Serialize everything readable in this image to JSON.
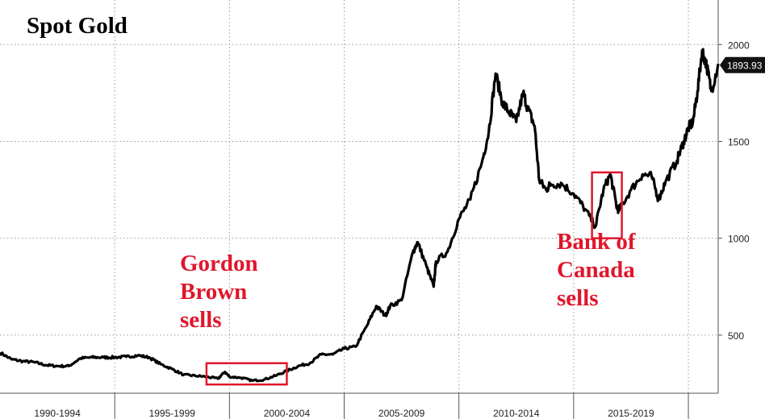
{
  "chart_data": {
    "type": "line",
    "title": "Spot Gold",
    "xlabel": "",
    "ylabel": "",
    "x_tick_labels": [
      "1990-1994",
      "1995-1999",
      "2000-2004",
      "2005-2009",
      "2010-2014",
      "2015-2019"
    ],
    "y_ticks": [
      500,
      1000,
      1500,
      2000
    ],
    "xlim": [
      1990,
      2021.3
    ],
    "ylim": [
      200,
      2230
    ],
    "grid": true,
    "last_value_label": "1893.93",
    "series": [
      {
        "x": [
          1990.0,
          1990.5,
          1991.0,
          1991.5,
          1992.0,
          1992.5,
          1993.0,
          1993.5,
          1994.0,
          1994.5,
          1995.0,
          1995.5,
          1996.0,
          1996.5,
          1997.0,
          1997.5,
          1998.0,
          1998.5,
          1999.0,
          1999.5,
          1999.8,
          2000.0,
          2000.5,
          2001.0,
          2001.5,
          2002.0,
          2002.5,
          2003.0,
          2003.5,
          2004.0,
          2004.5,
          2005.0,
          2005.5,
          2006.0,
          2006.4,
          2006.8,
          2007.0,
          2007.5,
          2008.0,
          2008.2,
          2008.6,
          2008.9,
          2009.0,
          2009.5,
          2010.0,
          2010.5,
          2011.0,
          2011.3,
          2011.6,
          2011.9,
          2012.2,
          2012.5,
          2012.8,
          2013.0,
          2013.3,
          2013.5,
          2013.8,
          2014.0,
          2014.5,
          2015.0,
          2015.5,
          2015.95,
          2016.3,
          2016.6,
          2016.9,
          2017.0,
          2017.5,
          2018.0,
          2018.4,
          2018.7,
          2019.0,
          2019.5,
          2019.8,
          2020.0,
          2020.2,
          2020.4,
          2020.6,
          2020.8,
          2021.0,
          2021.3
        ],
        "values": [
          410,
          375,
          365,
          360,
          345,
          340,
          340,
          380,
          385,
          385,
          385,
          388,
          395,
          385,
          350,
          325,
          295,
          290,
          285,
          275,
          310,
          285,
          280,
          265,
          270,
          290,
          315,
          340,
          355,
          400,
          400,
          430,
          440,
          550,
          650,
          600,
          650,
          680,
          930,
          980,
          850,
          750,
          880,
          930,
          1100,
          1200,
          1390,
          1550,
          1850,
          1700,
          1650,
          1600,
          1750,
          1670,
          1580,
          1300,
          1250,
          1280,
          1280,
          1230,
          1150,
          1060,
          1250,
          1330,
          1150,
          1150,
          1250,
          1330,
          1320,
          1200,
          1290,
          1400,
          1500,
          1570,
          1600,
          1760,
          1970,
          1890,
          1760,
          1900
        ]
      }
    ],
    "annotations": [
      {
        "text": "Gordon\nBrown\nsells",
        "x_range": [
          1999.0,
          2002.5
        ],
        "y_range": [
          245,
          355
        ]
      },
      {
        "text": "Bank of\nCanada\nsells",
        "x_range": [
          2015.8,
          2017.1
        ],
        "y_range": [
          1000,
          1340
        ]
      }
    ]
  }
}
